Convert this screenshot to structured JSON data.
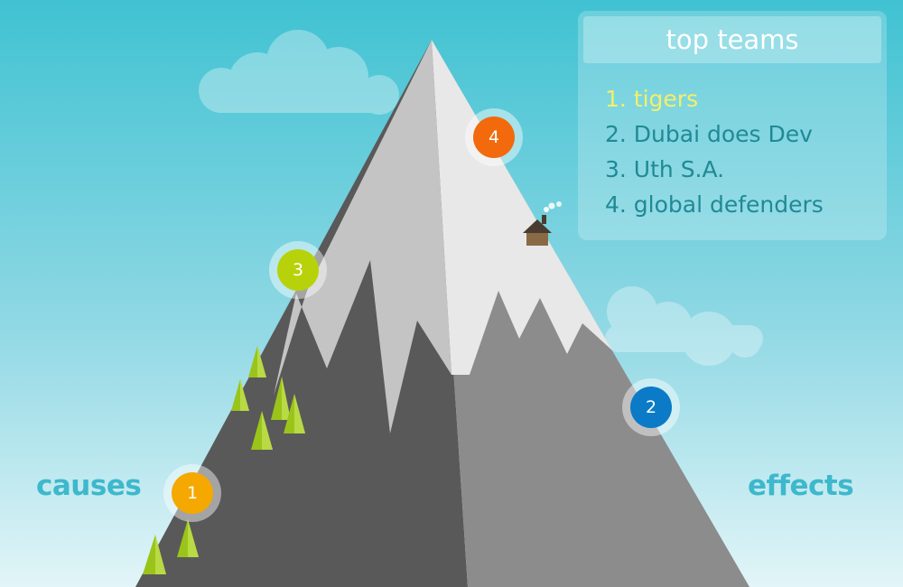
{
  "scene": {
    "left_label": "causes",
    "right_label": "effects"
  },
  "markers": [
    {
      "number": "1",
      "color": "#f5a800"
    },
    {
      "number": "2",
      "color": "#0b7bc7"
    },
    {
      "number": "3",
      "color": "#b7d20a"
    },
    {
      "number": "4",
      "color": "#f26a0c"
    }
  ],
  "leaderboard": {
    "title": "top teams",
    "entries": [
      "1. tigers",
      "2. Dubai does Dev",
      "3. Uth S.A.",
      "4. global defenders"
    ]
  },
  "colors": {
    "sky_top": "#40c2d2",
    "sky_bottom": "#dff3f7",
    "label": "#3db8cc",
    "leader_highlight": "#f2f06a",
    "leader_text": "#1f8a96"
  }
}
